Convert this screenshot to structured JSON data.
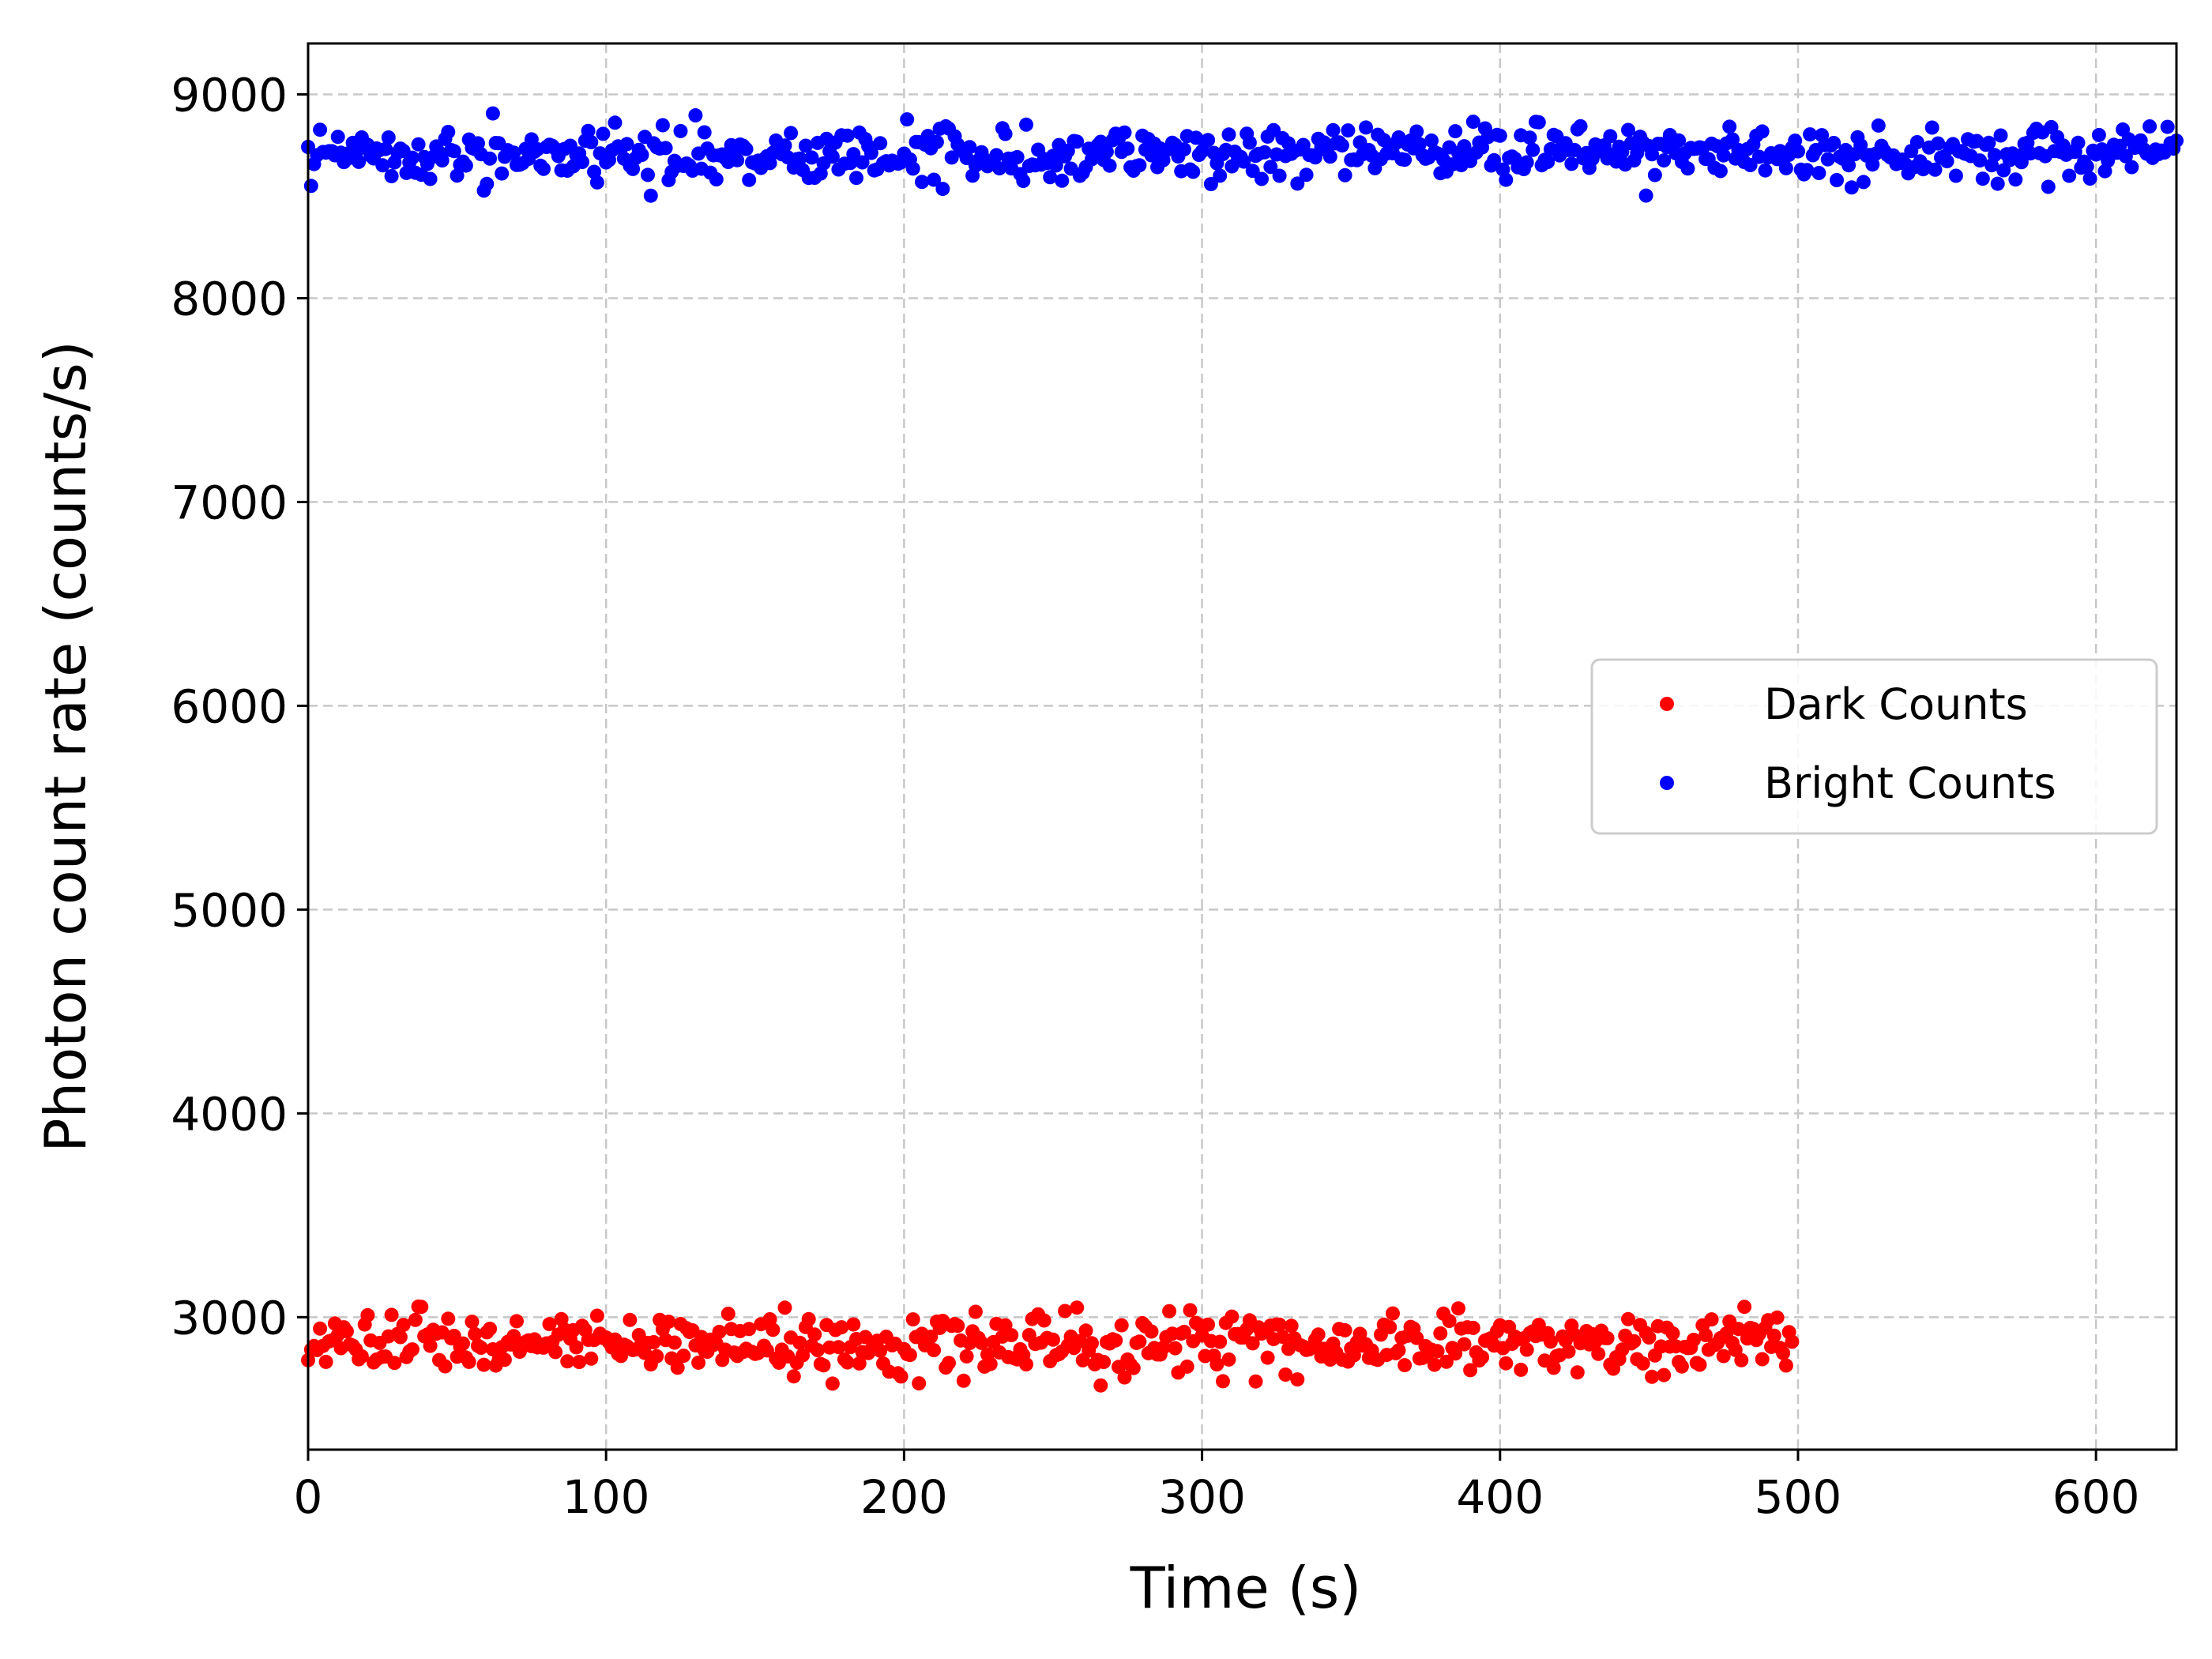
{
  "chart_data": {
    "type": "scatter",
    "title": "",
    "xlabel": "Time (s)",
    "ylabel": "Photon count rate (counts/s)",
    "xlim": [
      0,
      627
    ],
    "ylim": [
      2350,
      9250
    ],
    "x_ticks": [
      0,
      100,
      200,
      300,
      400,
      500,
      600
    ],
    "y_ticks": [
      3000,
      4000,
      5000,
      6000,
      7000,
      8000,
      9000
    ],
    "grid": true,
    "legend_position": "center-right",
    "series": [
      {
        "name": "Dark Counts",
        "color": "#ff0000",
        "x_range": [
          0,
          498
        ],
        "x_step": 1,
        "mean": 2870,
        "spread": 75,
        "min": 2660,
        "max": 3060
      },
      {
        "name": "Bright Counts",
        "color": "#0000ff",
        "x_range": [
          0,
          627
        ],
        "x_step": 1,
        "mean": 8710,
        "spread": 70,
        "min": 8490,
        "max": 8950
      }
    ]
  }
}
